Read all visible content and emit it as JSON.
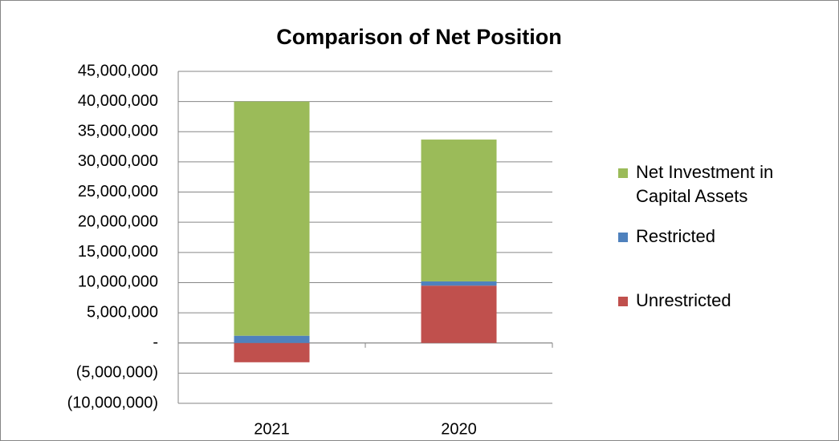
{
  "chart_data": {
    "type": "stacked_bar",
    "title": "Comparison of Net Position",
    "categories": [
      "2021",
      "2020"
    ],
    "series": [
      {
        "name": "Unrestricted",
        "color": "#c0504d",
        "values": [
          -3200000,
          9500000
        ]
      },
      {
        "name": "Restricted",
        "color": "#4f81bd",
        "values": [
          1200000,
          700000
        ]
      },
      {
        "name": "Net Investment in Capital Assets",
        "color": "#9bbb59",
        "values": [
          38800000,
          23500000
        ]
      }
    ],
    "ylim": [
      -10000000,
      45000000
    ],
    "yticks": [
      {
        "value": -10000000,
        "label": "(10,000,000)"
      },
      {
        "value": -5000000,
        "label": "(5,000,000)"
      },
      {
        "value": 0,
        "label": "-"
      },
      {
        "value": 5000000,
        "label": "5,000,000"
      },
      {
        "value": 10000000,
        "label": "10,000,000"
      },
      {
        "value": 15000000,
        "label": "15,000,000"
      },
      {
        "value": 20000000,
        "label": "20,000,000"
      },
      {
        "value": 25000000,
        "label": "25,000,000"
      },
      {
        "value": 30000000,
        "label": "30,000,000"
      },
      {
        "value": 35000000,
        "label": "35,000,000"
      },
      {
        "value": 40000000,
        "label": "40,000,000"
      },
      {
        "value": 45000000,
        "label": "45,000,000"
      }
    ],
    "grid": true,
    "legend": "right"
  }
}
